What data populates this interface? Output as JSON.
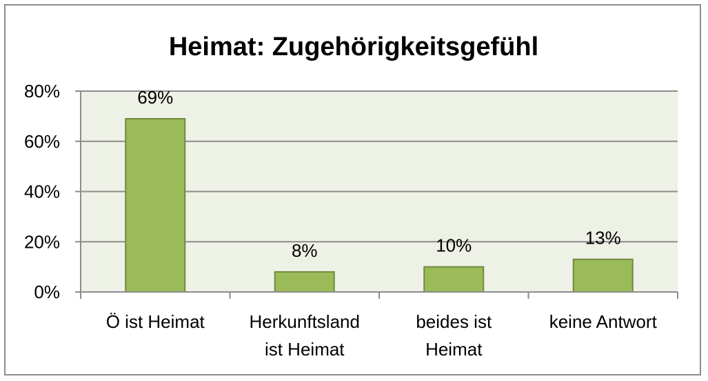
{
  "chart_data": {
    "type": "bar",
    "title": "Heimat: Zugehörigkeitsgefühl",
    "categories": [
      [
        "Ö ist Heimat"
      ],
      [
        "Herkunftsland",
        "ist Heimat"
      ],
      [
        "beides ist",
        "Heimat"
      ],
      [
        "keine Antwort"
      ]
    ],
    "values": [
      69,
      8,
      10,
      13
    ],
    "data_labels": [
      "69%",
      "8%",
      "10%",
      "13%"
    ],
    "y_ticks": [
      "0%",
      "20%",
      "40%",
      "60%",
      "80%"
    ],
    "ylim": [
      0,
      80
    ],
    "grid": true,
    "legend": "none",
    "colors": {
      "bar_fill": "#9bbb59",
      "bar_stroke": "#71893f",
      "plot_bg": "#eef1e6",
      "grid": "#8c8c8c",
      "axis": "#8c8c8c"
    }
  }
}
